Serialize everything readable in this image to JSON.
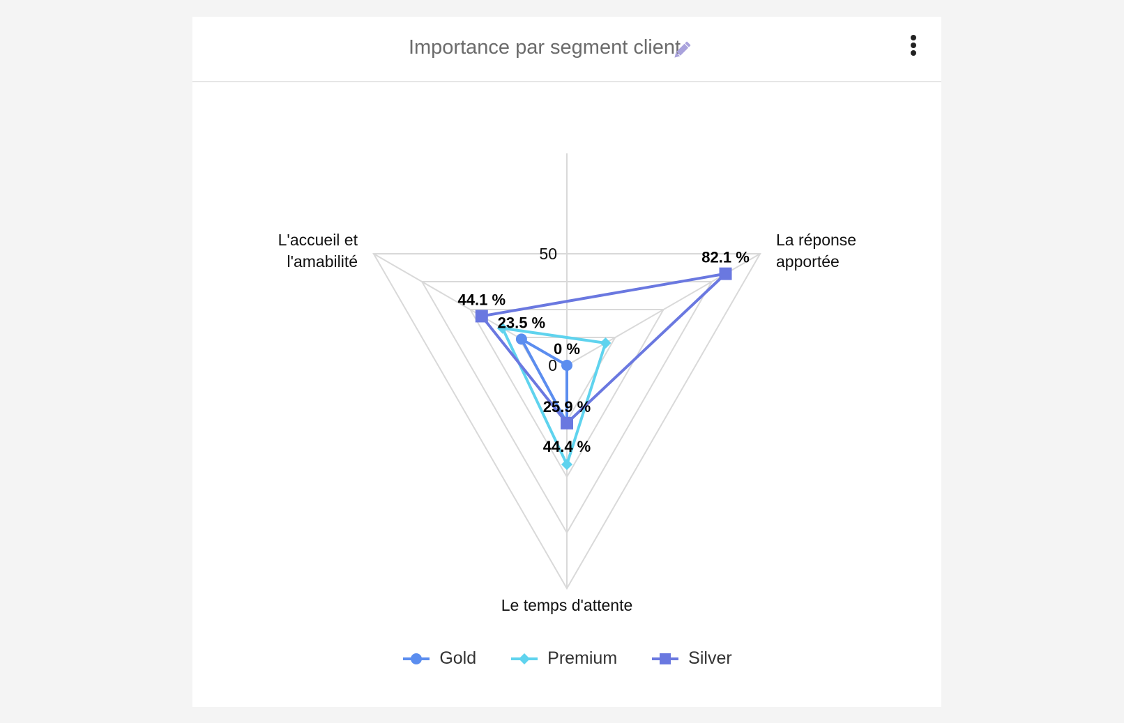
{
  "card": {
    "title": "Importance par segment client",
    "edit_icon": "pencil-icon",
    "menu_icon": "kebab-menu-icon"
  },
  "chart_data": {
    "type": "radar",
    "title": "Importance par segment client",
    "axes": [
      "L'accueil et l'amabilité",
      "La réponse apportée",
      "Le temps d'attente"
    ],
    "axis_label_lines": [
      [
        "L'accueil et",
        "l'amabilité"
      ],
      [
        "La réponse",
        "apportée"
      ],
      [
        "Le temps d'attente"
      ]
    ],
    "range": [
      0,
      100
    ],
    "tick_labels": [
      {
        "value": 0,
        "label": "0"
      },
      {
        "value": 50,
        "label": "50"
      }
    ],
    "grid_levels": [
      0,
      25,
      50,
      75,
      100
    ],
    "series": [
      {
        "name": "Gold",
        "values": [
          23.5,
          0,
          25.9
        ],
        "color": "#5b8def",
        "marker": "circle"
      },
      {
        "name": "Premium",
        "values": [
          33.3,
          20.0,
          44.4
        ],
        "color": "#5fd3ee",
        "marker": "diamond"
      },
      {
        "name": "Silver",
        "values": [
          44.1,
          82.1,
          25.9
        ],
        "color": "#6a78e0",
        "marker": "square"
      }
    ],
    "data_labels": [
      {
        "series": 2,
        "axis": 0,
        "text": "44.1 %"
      },
      {
        "series": 0,
        "axis": 0,
        "text": "23.5 %"
      },
      {
        "series": 0,
        "axis": 1,
        "text": "0 %"
      },
      {
        "series": 2,
        "axis": 1,
        "text": "82.1 %"
      },
      {
        "series": 2,
        "axis": 2,
        "text": "25.9 %"
      },
      {
        "series": 1,
        "axis": 2,
        "text": "44.4 %"
      }
    ],
    "legend": {
      "position": "bottom",
      "items": [
        "Gold",
        "Premium",
        "Silver"
      ]
    }
  }
}
